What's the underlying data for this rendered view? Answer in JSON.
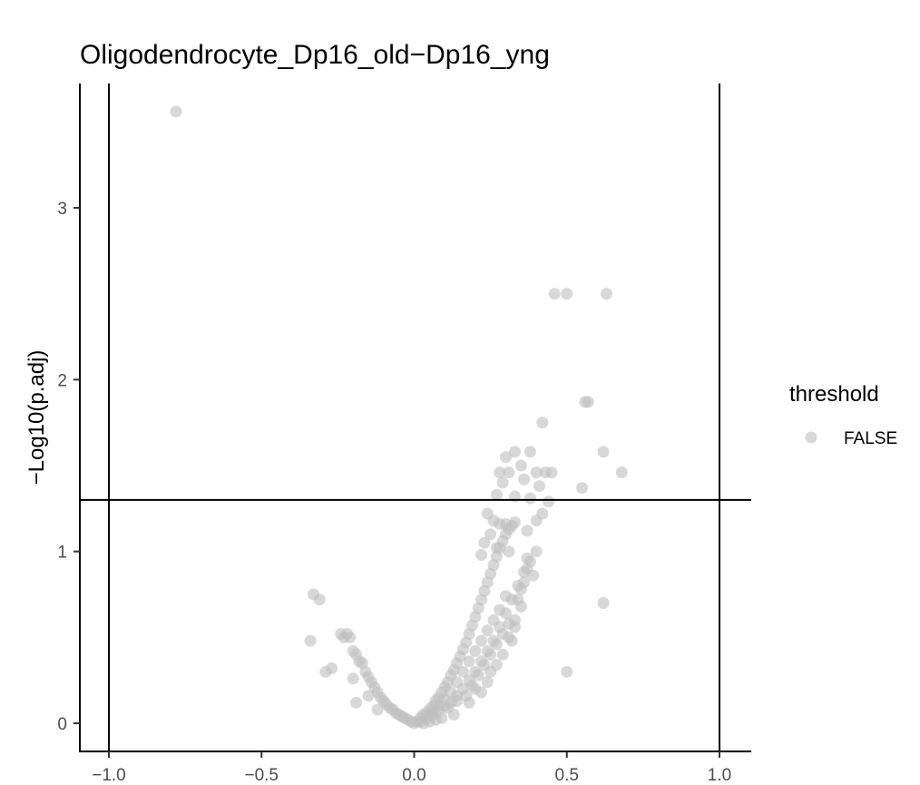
{
  "chart_data": {
    "type": "scatter",
    "title": "Oligodendrocyte_Dp16_old−Dp16_yng",
    "xlabel": "",
    "ylabel": "−Log10(p.adj)",
    "xlim": [
      -1.0,
      1.0
    ],
    "ylim": [
      0,
      3.6
    ],
    "x_ticks": [
      -1.0,
      -0.5,
      0.0,
      0.5,
      1.0
    ],
    "x_tick_labels": [
      "−1.0",
      "−0.5",
      "0.0",
      "0.5",
      "1.0"
    ],
    "y_ticks": [
      0,
      1,
      2,
      3
    ],
    "y_tick_labels": [
      "0",
      "1",
      "2",
      "3"
    ],
    "grid": false,
    "reference_lines": {
      "vertical": [
        -1.0,
        1.0
      ],
      "horizontal": [
        1.3
      ]
    },
    "legend": {
      "title": "threshold",
      "position": "right",
      "entries": [
        {
          "label": "FALSE",
          "color": "#bebebe"
        }
      ]
    },
    "series": [
      {
        "name": "FALSE",
        "color": "#bebebe",
        "points": [
          [
            -0.78,
            3.56
          ],
          [
            0.46,
            2.5
          ],
          [
            0.5,
            2.5
          ],
          [
            0.63,
            2.5
          ],
          [
            0.56,
            1.87
          ],
          [
            0.57,
            1.87
          ],
          [
            0.42,
            1.75
          ],
          [
            0.62,
            1.58
          ],
          [
            0.55,
            1.37
          ],
          [
            0.68,
            1.46
          ],
          [
            0.33,
            1.58
          ],
          [
            0.38,
            1.58
          ],
          [
            0.3,
            1.55
          ],
          [
            0.35,
            1.5
          ],
          [
            0.28,
            1.46
          ],
          [
            0.31,
            1.46
          ],
          [
            0.4,
            1.46
          ],
          [
            0.43,
            1.46
          ],
          [
            0.45,
            1.46
          ],
          [
            0.29,
            1.4
          ],
          [
            0.36,
            1.42
          ],
          [
            0.41,
            1.38
          ],
          [
            0.27,
            1.33
          ],
          [
            0.33,
            1.32
          ],
          [
            0.38,
            1.31
          ],
          [
            0.44,
            1.29
          ],
          [
            0.42,
            1.22
          ],
          [
            0.4,
            1.18
          ],
          [
            0.37,
            1.12
          ],
          [
            0.4,
            1.0
          ],
          [
            0.37,
            0.96
          ],
          [
            0.39,
            0.86
          ],
          [
            0.35,
            0.78
          ],
          [
            0.24,
            1.22
          ],
          [
            0.26,
            1.18
          ],
          [
            0.28,
            1.16
          ],
          [
            0.3,
            1.16
          ],
          [
            0.25,
            1.1
          ],
          [
            0.23,
            1.05
          ],
          [
            0.27,
            1.02
          ],
          [
            0.31,
            1.0
          ],
          [
            0.22,
            0.98
          ],
          [
            0.62,
            0.7
          ],
          [
            0.5,
            0.3
          ],
          [
            -0.34,
            0.48
          ],
          [
            -0.33,
            0.75
          ],
          [
            -0.31,
            0.72
          ],
          [
            -0.29,
            0.3
          ],
          [
            -0.27,
            0.32
          ],
          [
            -0.24,
            0.52
          ],
          [
            -0.23,
            0.5
          ],
          [
            -0.22,
            0.52
          ],
          [
            -0.21,
            0.5
          ],
          [
            -0.2,
            0.42
          ],
          [
            -0.19,
            0.4
          ],
          [
            -0.18,
            0.36
          ],
          [
            -0.17,
            0.35
          ],
          [
            -0.16,
            0.3
          ],
          [
            -0.15,
            0.27
          ],
          [
            -0.14,
            0.24
          ],
          [
            -0.13,
            0.21
          ],
          [
            -0.12,
            0.18
          ],
          [
            -0.11,
            0.15
          ],
          [
            -0.1,
            0.13
          ],
          [
            -0.09,
            0.11
          ],
          [
            -0.08,
            0.09
          ],
          [
            -0.07,
            0.08
          ],
          [
            -0.06,
            0.06
          ],
          [
            -0.05,
            0.05
          ],
          [
            -0.04,
            0.04
          ],
          [
            -0.03,
            0.03
          ],
          [
            -0.02,
            0.02
          ],
          [
            -0.01,
            0.01
          ],
          [
            -0.19,
            0.12
          ],
          [
            -0.15,
            0.16
          ],
          [
            -0.12,
            0.08
          ],
          [
            -0.2,
            0.26
          ],
          [
            0.0,
            0.0
          ],
          [
            0.01,
            0.01
          ],
          [
            0.02,
            0.03
          ],
          [
            0.03,
            0.05
          ],
          [
            0.04,
            0.06
          ],
          [
            0.05,
            0.08
          ],
          [
            0.06,
            0.1
          ],
          [
            0.07,
            0.13
          ],
          [
            0.08,
            0.15
          ],
          [
            0.09,
            0.18
          ],
          [
            0.1,
            0.21
          ],
          [
            0.11,
            0.24
          ],
          [
            0.12,
            0.28
          ],
          [
            0.13,
            0.31
          ],
          [
            0.14,
            0.35
          ],
          [
            0.15,
            0.39
          ],
          [
            0.16,
            0.43
          ],
          [
            0.17,
            0.47
          ],
          [
            0.18,
            0.52
          ],
          [
            0.19,
            0.57
          ],
          [
            0.2,
            0.62
          ],
          [
            0.21,
            0.67
          ],
          [
            0.22,
            0.72
          ],
          [
            0.23,
            0.77
          ],
          [
            0.24,
            0.82
          ],
          [
            0.25,
            0.87
          ],
          [
            0.26,
            0.92
          ],
          [
            0.27,
            0.97
          ],
          [
            0.28,
            1.02
          ],
          [
            0.29,
            1.06
          ],
          [
            0.3,
            1.1
          ],
          [
            0.31,
            1.13
          ],
          [
            0.32,
            1.15
          ],
          [
            0.33,
            1.17
          ],
          [
            0.06,
            0.05
          ],
          [
            0.08,
            0.07
          ],
          [
            0.1,
            0.1
          ],
          [
            0.12,
            0.12
          ],
          [
            0.14,
            0.16
          ],
          [
            0.16,
            0.2
          ],
          [
            0.18,
            0.25
          ],
          [
            0.2,
            0.3
          ],
          [
            0.22,
            0.36
          ],
          [
            0.24,
            0.42
          ],
          [
            0.26,
            0.48
          ],
          [
            0.28,
            0.56
          ],
          [
            0.3,
            0.64
          ],
          [
            0.32,
            0.72
          ],
          [
            0.34,
            0.8
          ],
          [
            0.36,
            0.88
          ],
          [
            0.38,
            0.94
          ],
          [
            0.25,
            0.3
          ],
          [
            0.24,
            0.24
          ],
          [
            0.2,
            0.2
          ],
          [
            0.17,
            0.16
          ],
          [
            0.14,
            0.13
          ],
          [
            0.11,
            0.09
          ],
          [
            0.29,
            0.4
          ],
          [
            0.31,
            0.5
          ],
          [
            0.27,
            0.34
          ],
          [
            0.33,
            0.6
          ],
          [
            0.35,
            0.68
          ],
          [
            0.22,
            0.18
          ],
          [
            0.18,
            0.12
          ],
          [
            0.13,
            0.05
          ],
          [
            0.09,
            0.03
          ],
          [
            0.07,
            0.02
          ],
          [
            0.05,
            0.01
          ],
          [
            0.03,
            0.0
          ],
          [
            0.36,
            0.82
          ],
          [
            0.37,
            0.9
          ],
          [
            0.34,
            0.72
          ],
          [
            0.33,
            0.56
          ],
          [
            0.32,
            0.48
          ],
          [
            0.19,
            0.22
          ],
          [
            0.21,
            0.28
          ],
          [
            0.23,
            0.34
          ],
          [
            0.25,
            0.4
          ],
          [
            0.27,
            0.46
          ],
          [
            0.29,
            0.52
          ],
          [
            0.31,
            0.58
          ],
          [
            0.3,
            0.74
          ],
          [
            0.28,
            0.66
          ],
          [
            0.26,
            0.6
          ],
          [
            0.24,
            0.54
          ],
          [
            0.22,
            0.48
          ],
          [
            0.2,
            0.42
          ],
          [
            0.18,
            0.36
          ],
          [
            0.16,
            0.3
          ],
          [
            0.14,
            0.24
          ],
          [
            0.12,
            0.18
          ],
          [
            0.1,
            0.14
          ],
          [
            0.08,
            0.1
          ],
          [
            0.06,
            0.07
          ],
          [
            0.04,
            0.03
          ],
          [
            0.02,
            0.01
          ]
        ]
      }
    ]
  }
}
